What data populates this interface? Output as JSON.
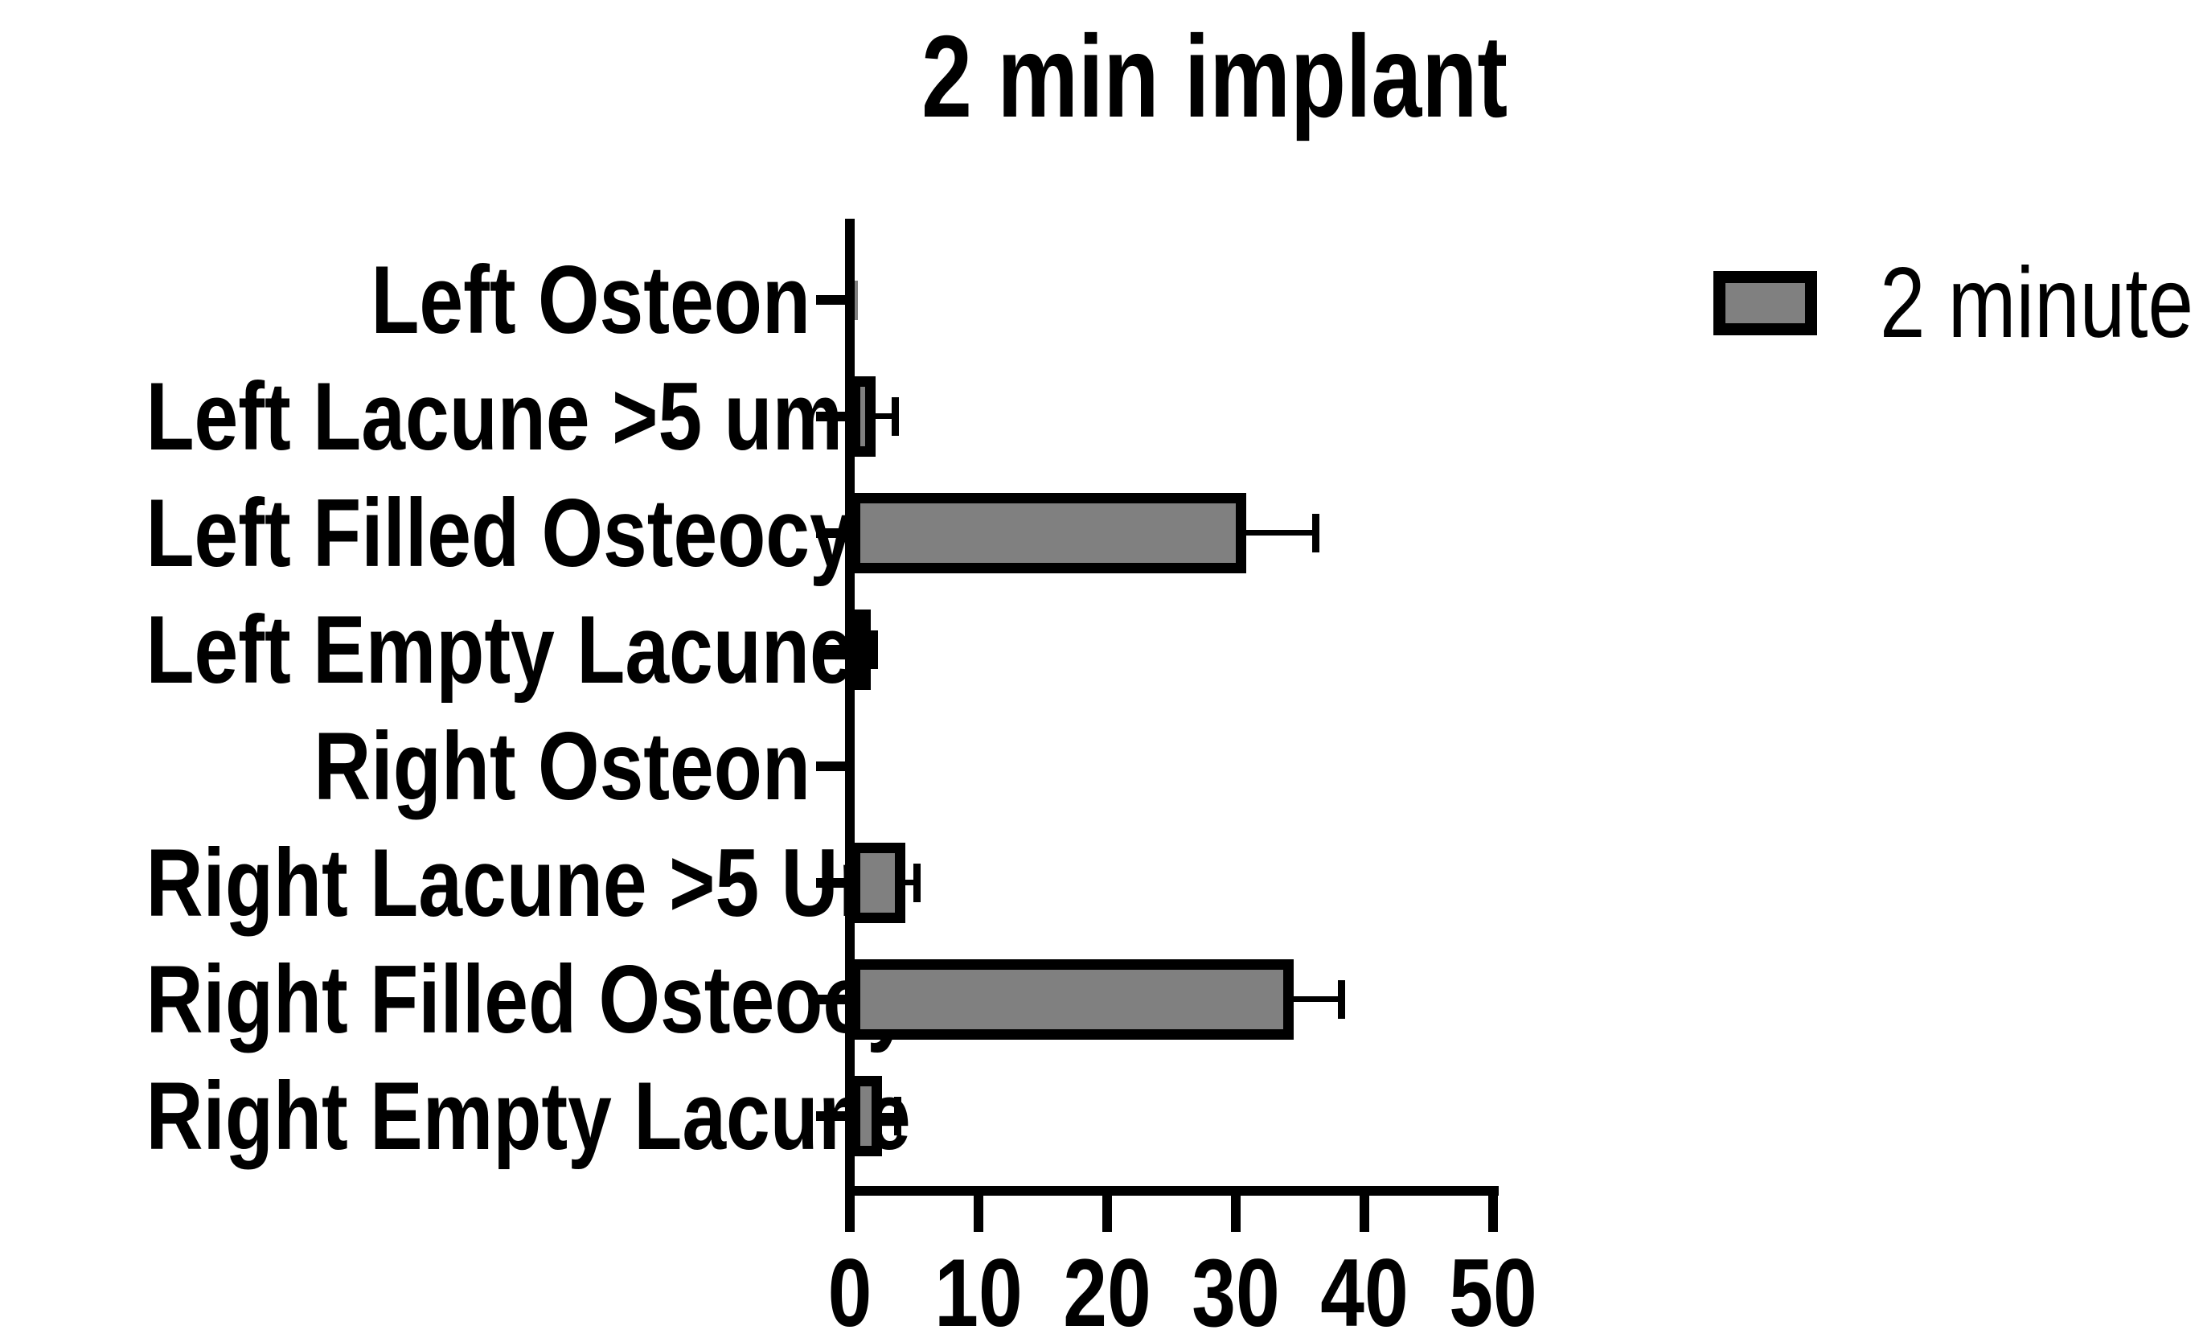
{
  "chart_data": {
    "type": "bar",
    "orientation": "horizontal",
    "title": "2 min implant",
    "categories": [
      "Left Osteon",
      "Left Lacune >5 um",
      "Left Filled Osteocyte",
      "Left Empty Lacune",
      "Right Osteon",
      "Right Lacune >5 Um",
      "Right Filled Osteocyte",
      "Right Empty Lacune"
    ],
    "series": [
      {
        "name": "2 minute",
        "values": [
          0.2,
          2.0,
          30.8,
          1.3,
          0,
          4.3,
          34.5,
          2.5
        ],
        "error_upper": [
          0,
          1.5,
          5.4,
          0.6,
          0,
          0.9,
          3.7,
          1.2
        ]
      }
    ],
    "xlabel": "",
    "ylabel": "",
    "x_ticks": [
      "0",
      "10",
      "20",
      "30",
      "40",
      "50"
    ],
    "xlim": [
      0,
      50
    ],
    "grid": false,
    "legend": {
      "position": "right",
      "entries": [
        "2 minute"
      ]
    },
    "colors": {
      "bar_fill": "#808080",
      "bar_outline": "#000000",
      "axis": "#000000",
      "text": "#000000",
      "background": "#ffffff"
    }
  }
}
